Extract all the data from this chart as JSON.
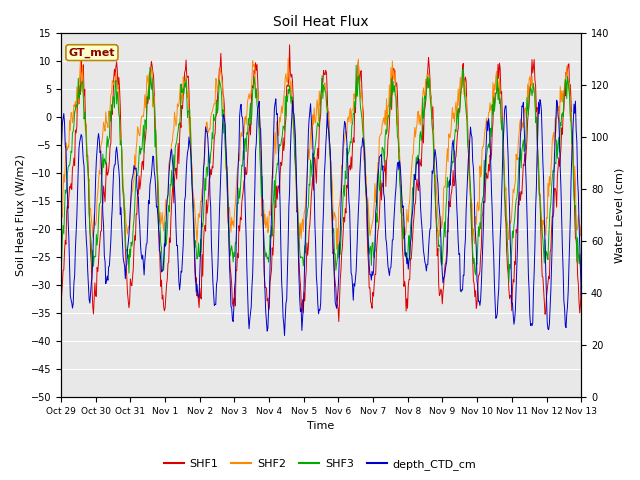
{
  "title": "Soil Heat Flux",
  "ylabel_left": "Soil Heat Flux (W/m2)",
  "ylabel_right": "Water Level (cm)",
  "xlabel": "Time",
  "ylim_left": [
    -50,
    15
  ],
  "ylim_right": [
    0,
    140
  ],
  "xtick_labels": [
    "Oct 29",
    "Oct 30",
    "Oct 31",
    "Nov 1",
    "Nov 2",
    "Nov 3",
    "Nov 4",
    "Nov 5",
    "Nov 6",
    "Nov 7",
    "Nov 8",
    "Nov 9",
    "Nov 10",
    "Nov 11",
    "Nov 12",
    "Nov 13"
  ],
  "legend_labels": [
    "SHF1",
    "SHF2",
    "SHF3",
    "depth_CTD_cm"
  ],
  "line_colors": [
    "#dd0000",
    "#ff8800",
    "#00aa00",
    "#0000cc"
  ],
  "annotation_text": "GT_met",
  "annotation_color": "#8b0000",
  "annotation_bg": "#ffffcc",
  "annotation_border": "#b8860b",
  "background_color": "#ffffff",
  "plot_bg": "#e8e8e8",
  "grid_color": "#ffffff",
  "yticks_left": [
    -50,
    -45,
    -40,
    -35,
    -30,
    -25,
    -20,
    -15,
    -10,
    -5,
    0,
    5,
    10,
    15
  ],
  "yticks_right": [
    0,
    20,
    40,
    60,
    80,
    100,
    120,
    140
  ]
}
